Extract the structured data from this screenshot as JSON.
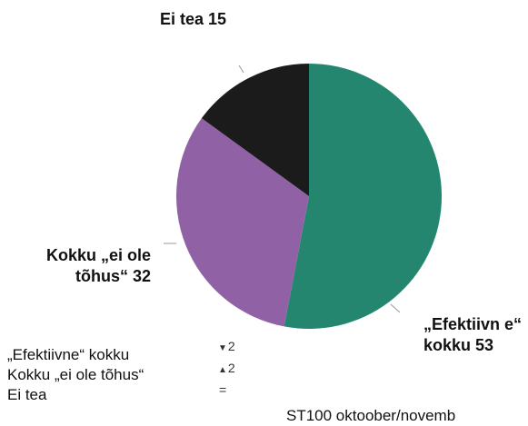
{
  "chart_data": {
    "type": "pie",
    "slices": [
      {
        "label": "„Efektiivne“ kokku",
        "value": 53,
        "color": "#258670"
      },
      {
        "label": "Kokku „ei ole tõhus“",
        "value": 32,
        "color": "#9061a4"
      },
      {
        "label": "Ei tea",
        "value": 15,
        "color": "#1b1b1b"
      }
    ],
    "data_labels": {
      "effective": "„Efektiivn e“ kokku 53",
      "not_effective": "Kokku „ei ole tõhus“ 32",
      "dont_know": "Ei tea 15"
    },
    "legend": {
      "placement": "bottom-left",
      "items": [
        "„Efektiivne“ kokku",
        "Kokku „ei ole tõhus“",
        "Ei tea"
      ],
      "changes": [
        {
          "direction": "down",
          "arrow": "▼",
          "value": "2"
        },
        {
          "direction": "up",
          "arrow": "▲",
          "value": "2"
        },
        {
          "direction": "same",
          "arrow": "",
          "value": "="
        }
      ]
    },
    "footer": "ST100 oktoober/novemb"
  }
}
